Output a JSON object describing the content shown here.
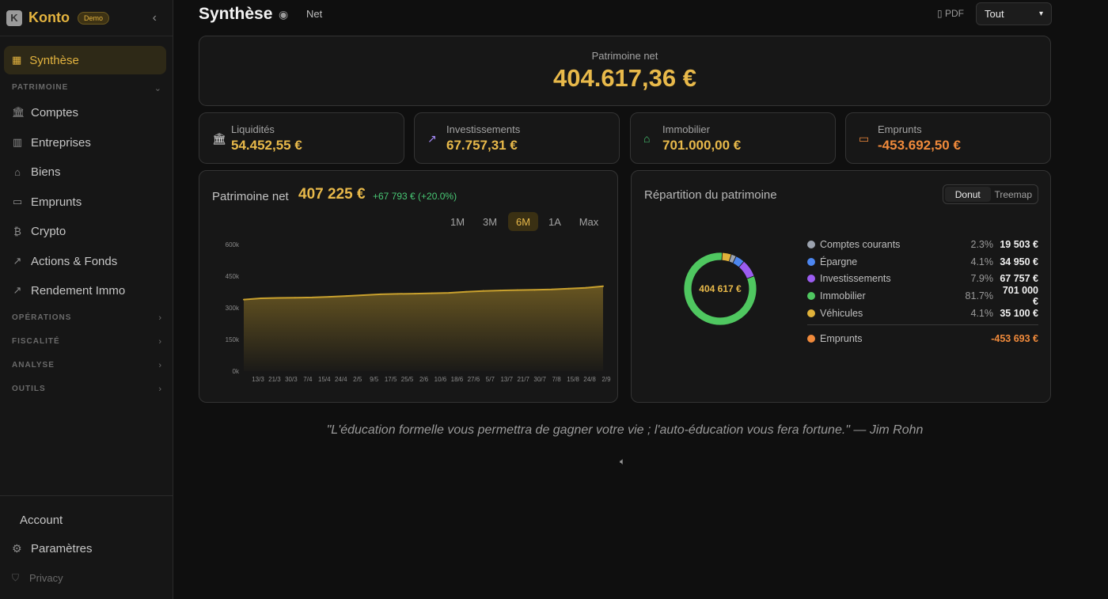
{
  "app": {
    "name": "Konto",
    "badge": "Demo",
    "logo_letter": "K"
  },
  "sidebar": {
    "active": {
      "label": "Synthèse",
      "icon": "grid-icon"
    },
    "patrimoine_header": "PATRIMOINE",
    "items": [
      {
        "label": "Comptes",
        "icon": "bank-icon"
      },
      {
        "label": "Entreprises",
        "icon": "building-icon"
      },
      {
        "label": "Biens",
        "icon": "house-icon"
      },
      {
        "label": "Emprunts",
        "icon": "loan-icon"
      },
      {
        "label": "Crypto",
        "icon": "bitcoin-icon"
      },
      {
        "label": "Actions & Fonds",
        "icon": "trend-icon"
      },
      {
        "label": "Rendement Immo",
        "icon": "trend-icon"
      }
    ],
    "sections": [
      "OPÉRATIONS",
      "FISCALITÉ",
      "ANALYSE",
      "OUTILS"
    ],
    "account_label": "Account",
    "settings_label": "Paramètres",
    "privacy_label": "Privacy"
  },
  "header": {
    "title": "Synthèse",
    "mode": "Net",
    "pdf_label": "PDF",
    "filter_value": "Tout"
  },
  "hero": {
    "label": "Patrimoine net",
    "value": "404.617,36 €"
  },
  "stats": [
    {
      "label": "Liquidités",
      "value": "54.452,55 €",
      "icon": "bank-icon",
      "color": "#e8e8e8"
    },
    {
      "label": "Investissements",
      "value": "67.757,31 €",
      "icon": "trend-up-icon",
      "color": "#a78bfa"
    },
    {
      "label": "Immobilier",
      "value": "701.000,00 €",
      "icon": "house-icon",
      "color": "#48c774"
    },
    {
      "label": "Emprunts",
      "value": "-453.692,50 €",
      "icon": "card-icon",
      "color": "#f08a3b"
    }
  ],
  "net_chart": {
    "title": "Patrimoine net",
    "total": "407 225 €",
    "delta": "+67 793 € (+20.0%)",
    "ranges": [
      "1M",
      "3M",
      "6M",
      "1A",
      "Max"
    ],
    "active_range": "6M"
  },
  "chart_data": {
    "type": "area",
    "title": "Patrimoine net",
    "x": [
      "13/3",
      "21/3",
      "30/3",
      "7/4",
      "15/4",
      "24/4",
      "2/5",
      "9/5",
      "17/5",
      "25/5",
      "2/6",
      "10/6",
      "18/6",
      "27/6",
      "5/7",
      "13/7",
      "21/7",
      "30/7",
      "7/8",
      "15/8",
      "24/8",
      "2/9"
    ],
    "values": [
      339000,
      345000,
      347000,
      348000,
      349000,
      352000,
      356000,
      360000,
      364000,
      366000,
      367000,
      369000,
      371000,
      376000,
      380000,
      382000,
      384000,
      385000,
      387000,
      391000,
      395000,
      402000
    ],
    "yticks": [
      "0k",
      "150k",
      "300k",
      "450k",
      "600k"
    ],
    "ylim": [
      0,
      600000
    ],
    "color": "#c9a12e",
    "grid": false
  },
  "distribution": {
    "title": "Répartition du patrimoine",
    "modes": [
      "Donut",
      "Treemap"
    ],
    "active_mode": "Donut",
    "center": "404 617 €",
    "items": [
      {
        "name": "Comptes courants",
        "pct": "2.3%",
        "value": "19 503 €",
        "color": "#9ca3af",
        "amount": 19503
      },
      {
        "name": "Épargne",
        "pct": "4.1%",
        "value": "34 950 €",
        "color": "#4c86f0",
        "amount": 34950
      },
      {
        "name": "Investissements",
        "pct": "7.9%",
        "value": "67 757 €",
        "color": "#9b5cf0",
        "amount": 67757
      },
      {
        "name": "Immobilier",
        "pct": "81.7%",
        "value": "701 000 €",
        "color": "#4fc760",
        "amount": 701000
      },
      {
        "name": "Véhicules",
        "pct": "4.1%",
        "value": "35 100 €",
        "color": "#e0b23a",
        "amount": 35100
      }
    ],
    "debt": {
      "name": "Emprunts",
      "value": "-453 693 €",
      "color": "#f08a3b"
    }
  },
  "quote": "\"L'éducation formelle vous permettra de gagner votre vie ; l'auto-éducation vous fera fortune.\" — Jim Rohn"
}
